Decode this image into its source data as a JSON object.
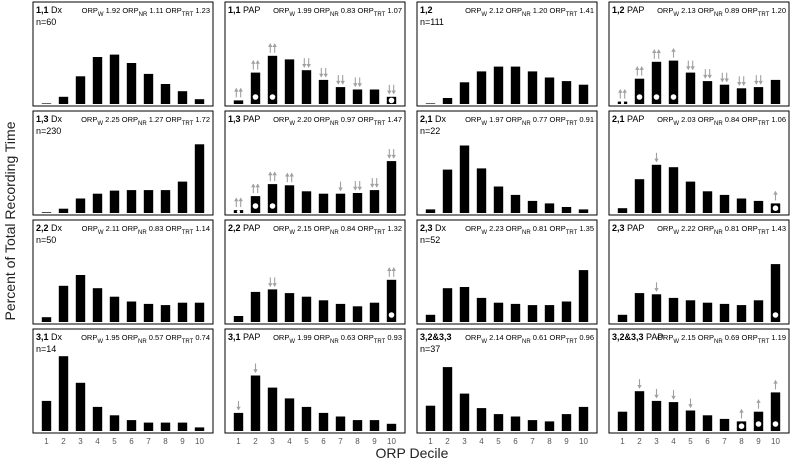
{
  "figure": {
    "ylabel": "Percent of Total Recording Time",
    "xlabel": "ORP Decile"
  },
  "chart_data": [
    {
      "type": "bar",
      "group": "1,1",
      "label": "Dx",
      "n": "n=60",
      "orp_w": "1.92",
      "orp_nr": "1.11",
      "orp_trt": "1.23",
      "categories": [
        "1",
        "2",
        "3",
        "4",
        "5",
        "6",
        "7",
        "8",
        "9",
        "10"
      ],
      "values": [
        0.2,
        3,
        11.5,
        19.5,
        20.5,
        17,
        12.5,
        8.3,
        5.3,
        2
      ],
      "arrows": [],
      "dots": []
    },
    {
      "type": "bar",
      "group": "1,1",
      "label": "PAP",
      "n": "",
      "orp_w": "1.99",
      "orp_nr": "0.83",
      "orp_trt": "1.07",
      "categories": [
        "1",
        "2",
        "3",
        "4",
        "5",
        "6",
        "7",
        "8",
        "9",
        "10"
      ],
      "values": [
        1.5,
        13,
        20,
        18.5,
        14,
        10,
        7,
        6,
        6,
        3
      ],
      "arrows": [
        {
          "bar": 1,
          "dir": "up",
          "count": 2
        },
        {
          "bar": 2,
          "dir": "up",
          "count": 2
        },
        {
          "bar": 3,
          "dir": "up",
          "count": 2
        },
        {
          "bar": 5,
          "dir": "down",
          "count": 2
        },
        {
          "bar": 6,
          "dir": "down",
          "count": 2
        },
        {
          "bar": 7,
          "dir": "down",
          "count": 2
        },
        {
          "bar": 8,
          "dir": "down",
          "count": 2
        },
        {
          "bar": 10,
          "dir": "down",
          "count": 2
        }
      ],
      "dots": [
        2,
        3,
        10
      ]
    },
    {
      "type": "bar",
      "group": "1,2",
      "label": "",
      "n": "n=111",
      "orp_w": "2.12",
      "orp_nr": "1.20",
      "orp_trt": "1.41",
      "categories": [
        "1",
        "2",
        "3",
        "4",
        "5",
        "6",
        "7",
        "8",
        "9",
        "10"
      ],
      "values": [
        0.2,
        2.5,
        9,
        13.5,
        15.5,
        15.5,
        13.5,
        11,
        9.5,
        8
      ],
      "arrows": [],
      "dots": []
    },
    {
      "type": "bar",
      "group": "1,2",
      "label": "PAP",
      "n": "",
      "orp_w": "2.13",
      "orp_nr": "0.89",
      "orp_trt": "1.20",
      "categories": [
        "1",
        "2",
        "3",
        "4",
        "5",
        "6",
        "7",
        "8",
        "9",
        "10"
      ],
      "values": [
        1,
        10.5,
        17.5,
        18,
        13,
        9.5,
        8,
        6.5,
        7,
        10
      ],
      "arrows": [
        {
          "bar": 1,
          "dir": "up",
          "count": 2
        },
        {
          "bar": 2,
          "dir": "up",
          "count": 2
        },
        {
          "bar": 3,
          "dir": "up",
          "count": 2
        },
        {
          "bar": 4,
          "dir": "up",
          "count": 1
        },
        {
          "bar": 5,
          "dir": "down",
          "count": 2
        },
        {
          "bar": 6,
          "dir": "down",
          "count": 2
        },
        {
          "bar": 7,
          "dir": "down",
          "count": 2
        },
        {
          "bar": 8,
          "dir": "down",
          "count": 2
        },
        {
          "bar": 9,
          "dir": "down",
          "count": 2
        }
      ],
      "dots": [
        1,
        2,
        3,
        4
      ]
    },
    {
      "type": "bar",
      "group": "1,3",
      "label": "Dx",
      "n": "n=230",
      "orp_w": "2.25",
      "orp_nr": "1.27",
      "orp_trt": "1.72",
      "categories": [
        "1",
        "2",
        "3",
        "4",
        "5",
        "6",
        "7",
        "8",
        "9",
        "10"
      ],
      "values": [
        0.3,
        1.8,
        6,
        8,
        9.3,
        9.5,
        9.5,
        9.5,
        13,
        28.5
      ],
      "arrows": [],
      "dots": []
    },
    {
      "type": "bar",
      "group": "1,3",
      "label": "PAP",
      "n": "",
      "orp_w": "2.20",
      "orp_nr": "0.97",
      "orp_trt": "1.47",
      "categories": [
        "1",
        "2",
        "3",
        "4",
        "5",
        "6",
        "7",
        "8",
        "9",
        "10"
      ],
      "values": [
        1.2,
        7,
        12,
        11.5,
        9,
        8,
        8,
        8.3,
        9.5,
        21.5
      ],
      "arrows": [
        {
          "bar": 1,
          "dir": "up",
          "count": 2
        },
        {
          "bar": 2,
          "dir": "up",
          "count": 2
        },
        {
          "bar": 3,
          "dir": "up",
          "count": 2
        },
        {
          "bar": 4,
          "dir": "up",
          "count": 2
        },
        {
          "bar": 7,
          "dir": "down",
          "count": 1
        },
        {
          "bar": 8,
          "dir": "down",
          "count": 2
        },
        {
          "bar": 9,
          "dir": "down",
          "count": 2
        },
        {
          "bar": 10,
          "dir": "down",
          "count": 2
        }
      ],
      "dots": [
        1,
        2,
        3
      ]
    },
    {
      "type": "bar",
      "group": "2,1",
      "label": "Dx",
      "n": "n=22",
      "orp_w": "1.97",
      "orp_nr": "0.77",
      "orp_trt": "0.91",
      "categories": [
        "1",
        "2",
        "3",
        "4",
        "5",
        "6",
        "7",
        "8",
        "9",
        "10"
      ],
      "values": [
        1.5,
        18,
        28,
        18.5,
        11,
        7.5,
        5,
        4,
        2.5,
        1.5
      ],
      "arrows": [],
      "dots": []
    },
    {
      "type": "bar",
      "group": "2,1",
      "label": "PAP",
      "n": "",
      "orp_w": "2.03",
      "orp_nr": "0.84",
      "orp_trt": "1.06",
      "categories": [
        "1",
        "2",
        "3",
        "4",
        "5",
        "6",
        "7",
        "8",
        "9",
        "10"
      ],
      "values": [
        2,
        14,
        20,
        19,
        13,
        9,
        7.5,
        6,
        5,
        4
      ],
      "arrows": [
        {
          "bar": 3,
          "dir": "down",
          "count": 1
        },
        {
          "bar": 10,
          "dir": "up",
          "count": 1
        }
      ],
      "dots": [
        10
      ]
    },
    {
      "type": "bar",
      "group": "2,2",
      "label": "Dx",
      "n": "n=50",
      "orp_w": "2.11",
      "orp_nr": "0.83",
      "orp_trt": "1.14",
      "categories": [
        "1",
        "2",
        "3",
        "4",
        "5",
        "6",
        "7",
        "8",
        "9",
        "10"
      ],
      "values": [
        2,
        15,
        19.5,
        14,
        10.5,
        8.5,
        7.5,
        7,
        8,
        8
      ],
      "arrows": [],
      "dots": []
    },
    {
      "type": "bar",
      "group": "2,2",
      "label": "PAP",
      "n": "",
      "orp_w": "2.15",
      "orp_nr": "0.84",
      "orp_trt": "1.32",
      "categories": [
        "1",
        "2",
        "3",
        "4",
        "5",
        "6",
        "7",
        "8",
        "9",
        "10"
      ],
      "values": [
        2.5,
        12.5,
        13.5,
        12,
        10.5,
        9,
        7.5,
        6.5,
        8,
        17.5
      ],
      "arrows": [
        {
          "bar": 3,
          "dir": "down",
          "count": 2
        },
        {
          "bar": 10,
          "dir": "up",
          "count": 2
        }
      ],
      "dots": [
        10
      ]
    },
    {
      "type": "bar",
      "group": "2,3",
      "label": "Dx",
      "n": "n=52",
      "orp_w": "2.23",
      "orp_nr": "0.81",
      "orp_trt": "1.35",
      "categories": [
        "1",
        "2",
        "3",
        "4",
        "5",
        "6",
        "7",
        "8",
        "9",
        "10"
      ],
      "values": [
        3,
        14,
        14.5,
        10,
        8,
        7.5,
        7,
        7,
        8.5,
        21.5
      ],
      "arrows": [],
      "dots": []
    },
    {
      "type": "bar",
      "group": "2,3",
      "label": "PAP",
      "n": "",
      "orp_w": "2.22",
      "orp_nr": "0.81",
      "orp_trt": "1.43",
      "categories": [
        "1",
        "2",
        "3",
        "4",
        "5",
        "6",
        "7",
        "8",
        "9",
        "10"
      ],
      "values": [
        3,
        12,
        11.5,
        10,
        9,
        8,
        7.5,
        7,
        9,
        24
      ],
      "arrows": [
        {
          "bar": 3,
          "dir": "down",
          "count": 1
        }
      ],
      "dots": [
        10
      ]
    },
    {
      "type": "bar",
      "group": "3,1",
      "label": "Dx",
      "n": "n=14",
      "orp_w": "1.95",
      "orp_nr": "0.57",
      "orp_trt": "0.74",
      "categories": [
        "1",
        "2",
        "3",
        "4",
        "5",
        "6",
        "7",
        "8",
        "9",
        "10"
      ],
      "values": [
        12.5,
        31,
        20,
        10,
        6.5,
        4.5,
        3.5,
        3.5,
        3.5,
        1.5
      ],
      "arrows": [],
      "dots": []
    },
    {
      "type": "bar",
      "group": "3,1",
      "label": "PAP",
      "n": "",
      "orp_w": "1.99",
      "orp_nr": "0.63",
      "orp_trt": "0.93",
      "categories": [
        "1",
        "2",
        "3",
        "4",
        "5",
        "6",
        "7",
        "8",
        "9",
        "10"
      ],
      "values": [
        7.5,
        23,
        18,
        13.5,
        10,
        7.5,
        6,
        4.5,
        4.5,
        3
      ],
      "arrows": [
        {
          "bar": 1,
          "dir": "down",
          "count": 1
        },
        {
          "bar": 2,
          "dir": "down",
          "count": 1
        }
      ],
      "dots": []
    },
    {
      "type": "bar",
      "group": "3,2&3,3",
      "label": "",
      "n": "n=37",
      "orp_w": "2.14",
      "orp_nr": "0.61",
      "orp_trt": "0.96",
      "categories": [
        "1",
        "2",
        "3",
        "4",
        "5",
        "6",
        "7",
        "8",
        "9",
        "10"
      ],
      "values": [
        10.5,
        26.5,
        15.5,
        9.5,
        7,
        6,
        4.5,
        4,
        7,
        10
      ],
      "arrows": [],
      "dots": []
    },
    {
      "type": "bar",
      "group": "3,2&3,3",
      "label": "PAP",
      "n": "",
      "orp_w": "2.15",
      "orp_nr": "0.69",
      "orp_trt": "1.19",
      "categories": [
        "1",
        "2",
        "3",
        "4",
        "5",
        "6",
        "7",
        "8",
        "9",
        "10"
      ],
      "values": [
        8,
        16.5,
        12.5,
        12,
        8.5,
        6.5,
        5,
        4,
        8,
        16
      ],
      "arrows": [
        {
          "bar": 2,
          "dir": "down",
          "count": 1
        },
        {
          "bar": 3,
          "dir": "down",
          "count": 1
        },
        {
          "bar": 4,
          "dir": "down",
          "count": 1
        },
        {
          "bar": 5,
          "dir": "down",
          "count": 1
        },
        {
          "bar": 8,
          "dir": "up",
          "count": 1
        },
        {
          "bar": 9,
          "dir": "up",
          "count": 1
        },
        {
          "bar": 10,
          "dir": "up",
          "count": 1
        }
      ],
      "dots": [
        8,
        9,
        10
      ]
    }
  ]
}
